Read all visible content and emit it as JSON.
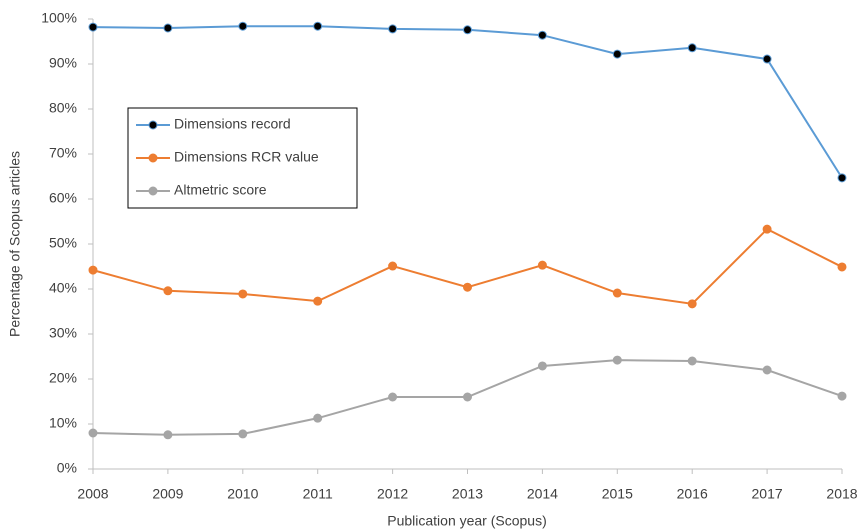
{
  "chart_data": {
    "type": "line",
    "xlabel": "Publication year (Scopus)",
    "ylabel": "Percentage of Scopus articles",
    "x": [
      2008,
      2009,
      2010,
      2011,
      2012,
      2013,
      2014,
      2015,
      2016,
      2017,
      2018
    ],
    "xlim": [
      2008,
      2018
    ],
    "xticks": [
      2008,
      2009,
      2010,
      2011,
      2012,
      2013,
      2014,
      2015,
      2016,
      2017,
      2018
    ],
    "ylim": [
      0,
      100
    ],
    "yticks": [
      {
        "value": 0,
        "label": "0%"
      },
      {
        "value": 10,
        "label": "10%"
      },
      {
        "value": 20,
        "label": "20%"
      },
      {
        "value": 30,
        "label": "30%"
      },
      {
        "value": 40,
        "label": "40%"
      },
      {
        "value": 50,
        "label": "50%"
      },
      {
        "value": 60,
        "label": "60%"
      },
      {
        "value": 70,
        "label": "70%"
      },
      {
        "value": 80,
        "label": "80%"
      },
      {
        "value": 90,
        "label": "90%"
      },
      {
        "value": 100,
        "label": "100%"
      }
    ],
    "grid": false,
    "legend": "upper left",
    "series": [
      {
        "name": "Dimensions record",
        "color": "#5b9bd5",
        "marker_color": "#000000",
        "values": [
          98.2,
          98.0,
          98.4,
          98.4,
          97.8,
          97.6,
          96.4,
          92.2,
          93.6,
          91.1,
          64.7
        ]
      },
      {
        "name": "Dimensions RCR value",
        "color": "#ed7d31",
        "values": [
          44.2,
          39.6,
          38.9,
          37.3,
          45.1,
          40.4,
          45.3,
          39.1,
          36.7,
          53.3,
          44.9
        ]
      },
      {
        "name": "Altmetric score",
        "color": "#a5a5a5",
        "values": [
          8.0,
          7.6,
          7.8,
          11.3,
          16.0,
          16.0,
          22.9,
          24.2,
          24.0,
          22.0,
          16.2
        ]
      }
    ]
  }
}
